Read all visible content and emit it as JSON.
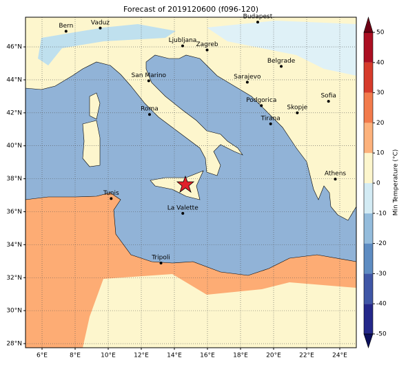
{
  "map": {
    "title": "Forecast of 2019120600 (f096-120)",
    "xlim": [
      5,
      25
    ],
    "ylim": [
      27.75,
      47.8
    ],
    "xticks": [
      {
        "value": 6,
        "label": "6°E"
      },
      {
        "value": 8,
        "label": "8°E"
      },
      {
        "value": 10,
        "label": "10°E"
      },
      {
        "value": 12,
        "label": "12°E"
      },
      {
        "value": 14,
        "label": "14°E"
      },
      {
        "value": 16,
        "label": "16°E"
      },
      {
        "value": 18,
        "label": "18°E"
      },
      {
        "value": 20,
        "label": "20°E"
      },
      {
        "value": 22,
        "label": "22°E"
      },
      {
        "value": 24,
        "label": "24°E"
      }
    ],
    "yticks": [
      {
        "value": 28,
        "label": "28°N"
      },
      {
        "value": 30,
        "label": "30°N"
      },
      {
        "value": 32,
        "label": "32°N"
      },
      {
        "value": 34,
        "label": "34°N"
      },
      {
        "value": 36,
        "label": "36°N"
      },
      {
        "value": 38,
        "label": "38°N"
      },
      {
        "value": 40,
        "label": "40°N"
      },
      {
        "value": 42,
        "label": "42°N"
      },
      {
        "value": 44,
        "label": "44°N"
      },
      {
        "value": 46,
        "label": "46°N"
      }
    ],
    "grid": true,
    "cities": [
      "Bern",
      "Vaduz",
      "Budapest",
      "Ljubljana",
      "Zagreb",
      "Belgrade",
      "Sarajevo",
      "San Marino",
      "Sofia",
      "Podgorica",
      "Skopje",
      "Roma",
      "Tirana",
      "Athens",
      "Tunis",
      "La Valette",
      "Tripoli"
    ],
    "colorbar": {
      "label": "Min Temperature (°C)",
      "lim": [
        -50,
        50
      ],
      "ticks": [
        -50,
        -40,
        -30,
        -20,
        -10,
        0,
        10,
        20,
        30,
        40,
        50
      ],
      "colors": [
        "#24288a",
        "#3f56a6",
        "#5e8cc2",
        "#94bcdc",
        "#d3ebf4",
        "#fdf6cd",
        "#fdb27c",
        "#f27b4c",
        "#d63b2b",
        "#ab0f22"
      ],
      "extend_colors": [
        "#0c0f5c",
        "#6e0014"
      ]
    }
  }
}
